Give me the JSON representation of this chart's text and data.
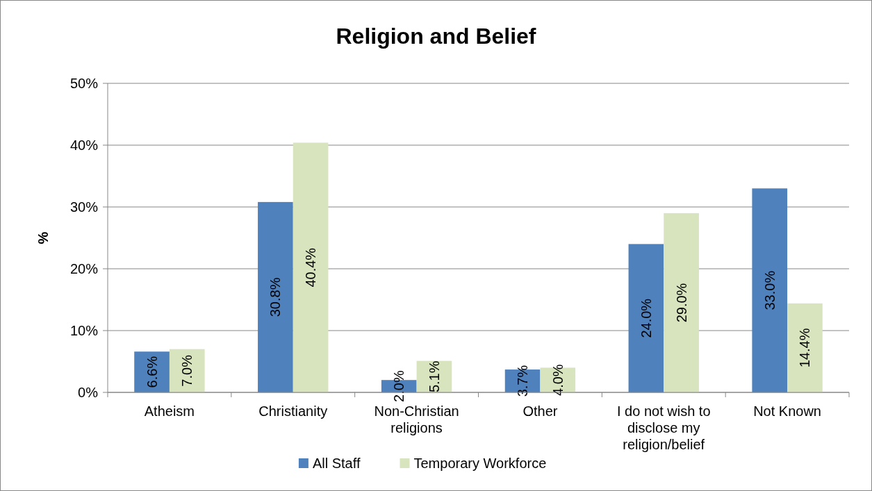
{
  "chart_data": {
    "type": "bar",
    "title": "Religion and Belief",
    "ylabel": "%",
    "categories": [
      "Atheism",
      "Christianity",
      "Non-Christian religions",
      "Other",
      "I do not wish to disclose my religion/belief",
      "Not Known"
    ],
    "series": [
      {
        "name": "All Staff",
        "color": "#4f81bd",
        "values": [
          6.6,
          30.8,
          2.0,
          3.7,
          24.0,
          33.0
        ],
        "value_labels": [
          "6.6%",
          "30.8%",
          "2.0%",
          "3.7%",
          "24.0%",
          "33.0%"
        ]
      },
      {
        "name": "Temporary Workforce",
        "color": "#d7e4bd",
        "values": [
          7.0,
          40.4,
          5.1,
          4.0,
          29.0,
          14.4
        ],
        "value_labels": [
          "7.0%",
          "40.4%",
          "5.1%",
          "4.0%",
          "29.0%",
          "14.4%"
        ]
      }
    ],
    "ylim": [
      0,
      50
    ],
    "yticks": [
      {
        "value": 0,
        "label": "0%"
      },
      {
        "value": 10,
        "label": "10%"
      },
      {
        "value": 20,
        "label": "20%"
      },
      {
        "value": 30,
        "label": "30%"
      },
      {
        "value": 40,
        "label": "40%"
      },
      {
        "value": 50,
        "label": "50%"
      }
    ],
    "grid": "y",
    "legend": "bottom"
  }
}
